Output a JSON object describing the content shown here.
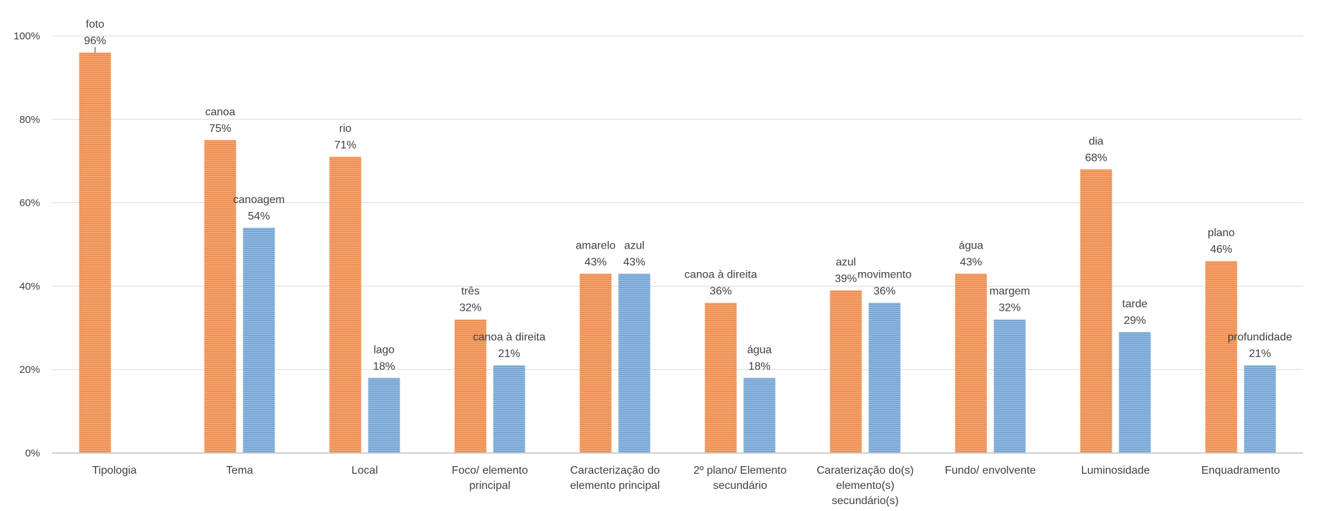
{
  "chart_data": {
    "type": "bar",
    "ylim": [
      0,
      100
    ],
    "yticks": [
      "0%",
      "20%",
      "40%",
      "60%",
      "80%",
      "100%"
    ],
    "grid": true,
    "colors": {
      "primary": "#F4A36C",
      "secondary": "#8FB8E0"
    },
    "categories": [
      {
        "label": [
          "Tipologia"
        ],
        "bars": [
          {
            "series": "primary",
            "label": "foto",
            "value": 96
          }
        ]
      },
      {
        "label": [
          "Tema"
        ],
        "bars": [
          {
            "series": "primary",
            "label": "canoa",
            "value": 75
          },
          {
            "series": "secondary",
            "label": "canoagem",
            "value": 54
          }
        ]
      },
      {
        "label": [
          "Local"
        ],
        "bars": [
          {
            "series": "primary",
            "label": "rio",
            "value": 71
          },
          {
            "series": "secondary",
            "label": "lago",
            "value": 18
          }
        ]
      },
      {
        "label": [
          "Foco/ elemento",
          "principal"
        ],
        "bars": [
          {
            "series": "primary",
            "label": "três",
            "value": 32
          },
          {
            "series": "secondary",
            "label": "canoa à direita",
            "value": 21
          }
        ]
      },
      {
        "label": [
          "Caracterização do",
          "elemento principal"
        ],
        "bars": [
          {
            "series": "primary",
            "label": "amarelo",
            "value": 43
          },
          {
            "series": "secondary",
            "label": "azul",
            "value": 43
          }
        ]
      },
      {
        "label": [
          "2º plano/ Elemento",
          "secundário"
        ],
        "bars": [
          {
            "series": "primary",
            "label": "canoa à direita",
            "value": 36
          },
          {
            "series": "secondary",
            "label": "água",
            "value": 18
          }
        ]
      },
      {
        "label": [
          "Caraterização do(s)",
          "elemento(s)",
          "secundário(s)"
        ],
        "bars": [
          {
            "series": "primary",
            "label": "azul",
            "value": 39
          },
          {
            "series": "secondary",
            "label": "movimento",
            "value": 36
          }
        ]
      },
      {
        "label": [
          "Fundo/ envolvente"
        ],
        "bars": [
          {
            "series": "primary",
            "label": "água",
            "value": 43
          },
          {
            "series": "secondary",
            "label": "margem",
            "value": 32
          }
        ]
      },
      {
        "label": [
          "Luminosidade"
        ],
        "bars": [
          {
            "series": "primary",
            "label": "dia",
            "value": 68
          },
          {
            "series": "secondary",
            "label": "tarde",
            "value": 29
          }
        ]
      },
      {
        "label": [
          "Enquadramento"
        ],
        "bars": [
          {
            "series": "primary",
            "label": "plano",
            "value": 46
          },
          {
            "series": "secondary",
            "label": "profundidade",
            "value": 21
          }
        ]
      }
    ]
  }
}
